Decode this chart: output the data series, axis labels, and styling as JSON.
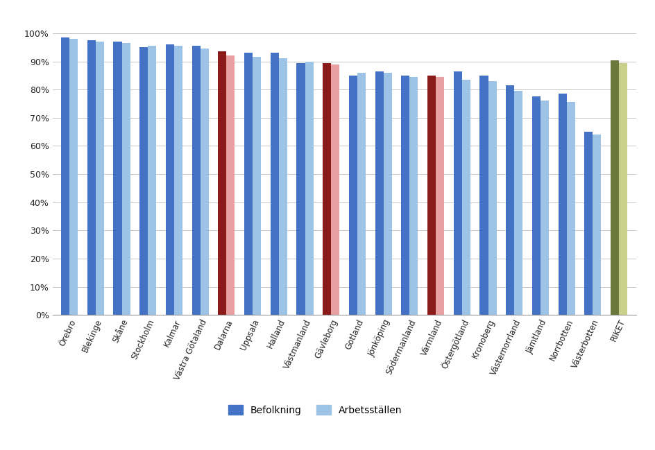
{
  "categories": [
    "Örebro",
    "Blekinge",
    "Skåne",
    "Stockholm",
    "Kalmar",
    "Västra Götaland",
    "Dalarna",
    "Uppsala",
    "Halland",
    "Västmanland",
    "Gävleborg",
    "Gotland",
    "Jönköping",
    "Södermanland",
    "Värmland",
    "Östergötland",
    "Kronoberg",
    "Västernorrland",
    "Jämtland",
    "Norrbotten",
    "Västerbotten",
    "RIKET"
  ],
  "befolkning": [
    98.5,
    97.5,
    97.0,
    95.0,
    96.0,
    95.5,
    93.5,
    93.0,
    93.0,
    89.5,
    89.5,
    85.0,
    86.5,
    85.0,
    85.0,
    86.5,
    85.0,
    81.5,
    77.5,
    78.5,
    65.0,
    90.5
  ],
  "arbetsställen": [
    98.0,
    97.0,
    96.5,
    95.5,
    95.5,
    94.5,
    92.0,
    91.5,
    91.0,
    90.0,
    89.0,
    86.0,
    86.0,
    84.5,
    84.5,
    83.5,
    83.0,
    79.5,
    76.0,
    75.5,
    64.0,
    89.5
  ],
  "befolkning_colors": [
    "#4472C4",
    "#4472C4",
    "#4472C4",
    "#4472C4",
    "#4472C4",
    "#4472C4",
    "#8B1A1A",
    "#4472C4",
    "#4472C4",
    "#4472C4",
    "#8B1A1A",
    "#4472C4",
    "#4472C4",
    "#4472C4",
    "#8B1A1A",
    "#4472C4",
    "#4472C4",
    "#4472C4",
    "#4472C4",
    "#4472C4",
    "#4472C4",
    "#6B7A3A"
  ],
  "arbetsställen_colors": [
    "#9DC3E6",
    "#9DC3E6",
    "#9DC3E6",
    "#9DC3E6",
    "#9DC3E6",
    "#9DC3E6",
    "#E8A0A0",
    "#9DC3E6",
    "#9DC3E6",
    "#9DC3E6",
    "#E8A0A0",
    "#9DC3E6",
    "#9DC3E6",
    "#9DC3E6",
    "#E8A0A0",
    "#9DC3E6",
    "#9DC3E6",
    "#9DC3E6",
    "#9DC3E6",
    "#9DC3E6",
    "#9DC3E6",
    "#C8D08A"
  ],
  "ylabel_ticks": [
    "0%",
    "10%",
    "20%",
    "30%",
    "40%",
    "50%",
    "60%",
    "70%",
    "80%",
    "90%",
    "100%"
  ],
  "ytick_values": [
    0,
    10,
    20,
    30,
    40,
    50,
    60,
    70,
    80,
    90,
    100
  ],
  "legend_befolkning": "Befolkning",
  "legend_arbetsställen": "Arbetsställen",
  "legend_befolk_color": "#4472C4",
  "legend_arb_color": "#9DC3E6",
  "figsize": [
    9.45,
    6.49
  ],
  "dpi": 100
}
